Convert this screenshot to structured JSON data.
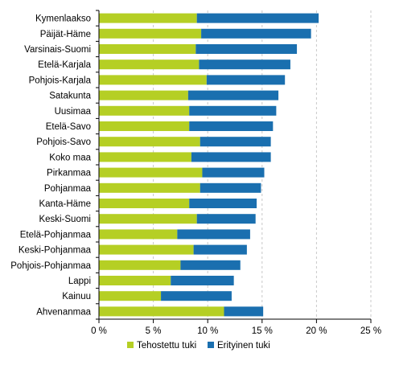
{
  "chart_data": {
    "type": "bar",
    "orientation": "horizontal",
    "stacked": true,
    "title": "",
    "xlabel": "",
    "ylabel": "",
    "xlim": [
      0,
      25
    ],
    "x_ticks": [
      0,
      5,
      10,
      15,
      20,
      25
    ],
    "x_tick_labels": [
      "0 %",
      "5 %",
      "10 %",
      "15 %",
      "20 %",
      "25 %"
    ],
    "grid": "vertical dashed",
    "legend_position": "bottom",
    "categories": [
      "Kymenlaakso",
      "Päijät-Häme",
      "Varsinais-Suomi",
      "Etelä-Karjala",
      "Pohjois-Karjala",
      "Satakunta",
      "Uusimaa",
      "Etelä-Savo",
      "Pohjois-Savo",
      "Koko maa",
      "Pirkanmaa",
      "Pohjanmaa",
      "Kanta-Häme",
      "Keski-Suomi",
      "Etelä-Pohjanmaa",
      "Keski-Pohjanmaa",
      "Pohjois-Pohjanmaa",
      "Lappi",
      "Kainuu",
      "Ahvenanmaa"
    ],
    "series": [
      {
        "name": "Tehostettu tuki",
        "color": "#b5cf24",
        "values": [
          9.0,
          9.4,
          8.9,
          9.2,
          9.9,
          8.2,
          8.3,
          8.3,
          9.3,
          8.5,
          9.5,
          9.3,
          8.3,
          9.0,
          7.2,
          8.7,
          7.5,
          6.6,
          5.7,
          11.5
        ]
      },
      {
        "name": "Erityinen tuki",
        "color": "#1a6faf",
        "values": [
          11.2,
          10.1,
          9.3,
          8.4,
          7.2,
          8.3,
          8.0,
          7.7,
          6.5,
          7.3,
          5.7,
          5.6,
          6.2,
          5.4,
          6.7,
          4.9,
          5.5,
          5.8,
          6.5,
          3.6
        ]
      }
    ]
  }
}
